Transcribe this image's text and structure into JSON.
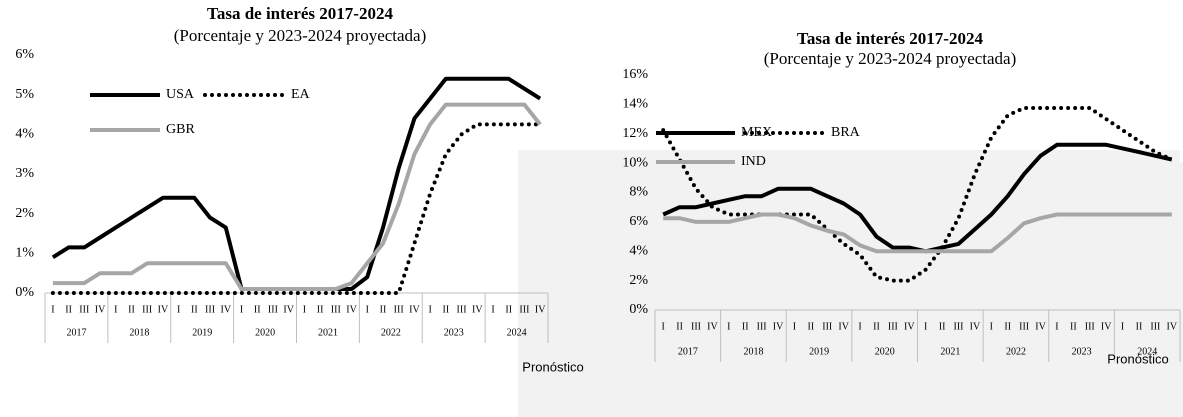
{
  "chart_data": [
    {
      "type": "line",
      "title": "Tasa de interés 2017-2024",
      "subtitle": "(Porcentaje y 2023-2024 proyectada)",
      "categories": [
        "I",
        "II",
        "III",
        "IV",
        "I",
        "II",
        "III",
        "IV",
        "I",
        "II",
        "III",
        "IV",
        "I",
        "II",
        "III",
        "IV",
        "I",
        "II",
        "III",
        "IV",
        "I",
        "II",
        "III",
        "IV",
        "I",
        "II",
        "III",
        "IV",
        "I",
        "II",
        "III",
        "IV"
      ],
      "groups": [
        "2017",
        "2018",
        "2019",
        "2020",
        "2021",
        "2022",
        "2023",
        "2024"
      ],
      "annotation": "Pronóstico",
      "ylim": [
        0,
        6
      ],
      "yticks": [
        {
          "value": 0,
          "label": "0%"
        },
        {
          "value": 1,
          "label": "1%"
        },
        {
          "value": 2,
          "label": "2%"
        },
        {
          "value": 3,
          "label": "3%"
        },
        {
          "value": 4,
          "label": "4%"
        },
        {
          "value": 5,
          "label": "5%"
        },
        {
          "value": 6,
          "label": "6%"
        }
      ],
      "series": [
        {
          "name": "USA",
          "color": "#000000",
          "style": "solid",
          "values": [
            0.9,
            1.15,
            1.15,
            1.4,
            1.65,
            1.9,
            2.15,
            2.4,
            2.4,
            2.4,
            1.9,
            1.65,
            0.1,
            0.1,
            0.1,
            0.1,
            0.1,
            0.1,
            0.1,
            0.1,
            0.4,
            1.65,
            3.15,
            4.4,
            4.9,
            5.4,
            5.4,
            5.4,
            5.4,
            5.4,
            5.15,
            4.9
          ]
        },
        {
          "name": "EA",
          "color": "#000000",
          "style": "dotted",
          "values": [
            0,
            0,
            0,
            0,
            0,
            0,
            0,
            0,
            0,
            0,
            0,
            0,
            0,
            0,
            0,
            0,
            0,
            0,
            0,
            0,
            0,
            0,
            0,
            1.25,
            2.5,
            3.5,
            4.0,
            4.25,
            4.25,
            4.25,
            4.25,
            4.25
          ]
        },
        {
          "name": "GBR",
          "color": "#a6a6a6",
          "style": "solid",
          "values": [
            0.25,
            0.25,
            0.25,
            0.5,
            0.5,
            0.5,
            0.75,
            0.75,
            0.75,
            0.75,
            0.75,
            0.75,
            0.1,
            0.1,
            0.1,
            0.1,
            0.1,
            0.1,
            0.1,
            0.25,
            0.75,
            1.25,
            2.25,
            3.5,
            4.25,
            4.75,
            4.75,
            4.75,
            4.75,
            4.75,
            4.75,
            4.25
          ]
        }
      ]
    },
    {
      "type": "line",
      "title": "Tasa de interés 2017-2024",
      "subtitle": "(Porcentaje y 2023-2024 proyectada)",
      "categories": [
        "I",
        "II",
        "III",
        "IV",
        "I",
        "II",
        "III",
        "IV",
        "I",
        "II",
        "III",
        "IV",
        "I",
        "II",
        "III",
        "IV",
        "I",
        "II",
        "III",
        "IV",
        "I",
        "II",
        "III",
        "IV",
        "I",
        "II",
        "III",
        "IV",
        "I",
        "II",
        "III",
        "IV"
      ],
      "groups": [
        "2017",
        "2018",
        "2019",
        "2020",
        "2021",
        "2022",
        "2023",
        "2024"
      ],
      "annotation": "Pronóstico",
      "ylim": [
        0,
        16
      ],
      "yticks": [
        {
          "value": 0,
          "label": "0%"
        },
        {
          "value": 2,
          "label": "2%"
        },
        {
          "value": 4,
          "label": "4%"
        },
        {
          "value": 6,
          "label": "6%"
        },
        {
          "value": 8,
          "label": "8%"
        },
        {
          "value": 10,
          "label": "10%"
        },
        {
          "value": 12,
          "label": "12%"
        },
        {
          "value": 14,
          "label": "14%"
        },
        {
          "value": 16,
          "label": "16%"
        }
      ],
      "series": [
        {
          "name": "MEX",
          "color": "#000000",
          "style": "solid",
          "values": [
            6.5,
            7.0,
            7.0,
            7.25,
            7.5,
            7.75,
            7.75,
            8.25,
            8.25,
            8.25,
            7.75,
            7.25,
            6.5,
            5.0,
            4.25,
            4.25,
            4.0,
            4.25,
            4.5,
            5.5,
            6.5,
            7.75,
            9.25,
            10.5,
            11.25,
            11.25,
            11.25,
            11.25,
            11.0,
            10.75,
            10.5,
            10.25
          ]
        },
        {
          "name": "BRA",
          "color": "#000000",
          "style": "dotted",
          "values": [
            12.25,
            10.25,
            8.25,
            7.0,
            6.5,
            6.5,
            6.5,
            6.5,
            6.5,
            6.5,
            5.5,
            4.5,
            3.75,
            2.25,
            2.0,
            2.0,
            2.75,
            4.25,
            6.25,
            9.25,
            11.75,
            13.25,
            13.75,
            13.75,
            13.75,
            13.75,
            13.75,
            13.0,
            12.25,
            11.5,
            10.75,
            10.25
          ]
        },
        {
          "name": "IND",
          "color": "#a6a6a6",
          "style": "solid",
          "values": [
            6.25,
            6.25,
            6.0,
            6.0,
            6.0,
            6.25,
            6.5,
            6.5,
            6.25,
            5.75,
            5.4,
            5.15,
            4.4,
            4.0,
            4.0,
            4.0,
            4.0,
            4.0,
            4.0,
            4.0,
            4.0,
            4.9,
            5.9,
            6.25,
            6.5,
            6.5,
            6.5,
            6.5,
            6.5,
            6.5,
            6.5,
            6.5
          ]
        }
      ]
    }
  ]
}
